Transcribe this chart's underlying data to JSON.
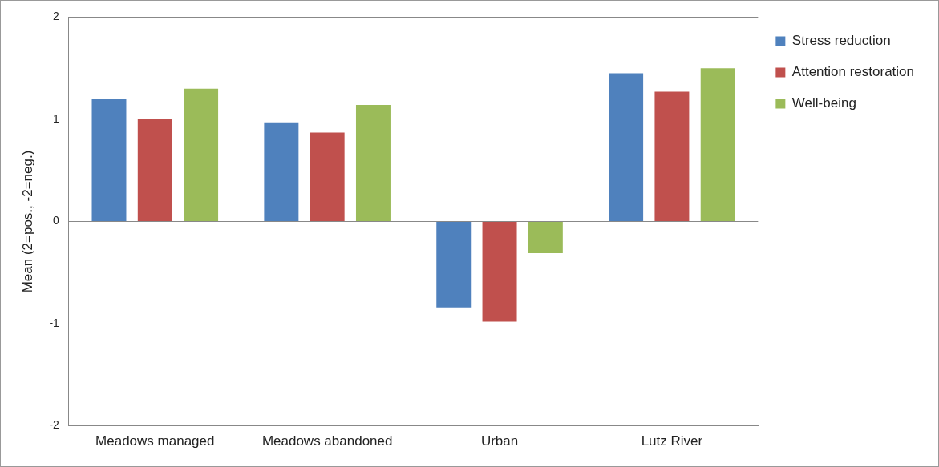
{
  "chart_data": {
    "type": "bar",
    "ylabel": "Mean (2=pos., -2=neg.)",
    "categories": [
      "Meadows managed",
      "Meadows abandoned",
      "Urban",
      "Lutz River"
    ],
    "series": [
      {
        "name": "Stress reduction",
        "color": "#4f81bd",
        "values": [
          1.2,
          0.97,
          -0.84,
          1.45
        ]
      },
      {
        "name": "Attention restoration",
        "color": "#c0504d",
        "values": [
          1.0,
          0.87,
          -0.98,
          1.27
        ]
      },
      {
        "name": "Well-being",
        "color": "#9bbb59",
        "values": [
          1.3,
          1.14,
          -0.31,
          1.5
        ]
      }
    ],
    "ylim": [
      -2,
      2
    ],
    "yticks": [
      -2,
      -1,
      0,
      1,
      2
    ],
    "grid": "y",
    "legend": "right"
  }
}
